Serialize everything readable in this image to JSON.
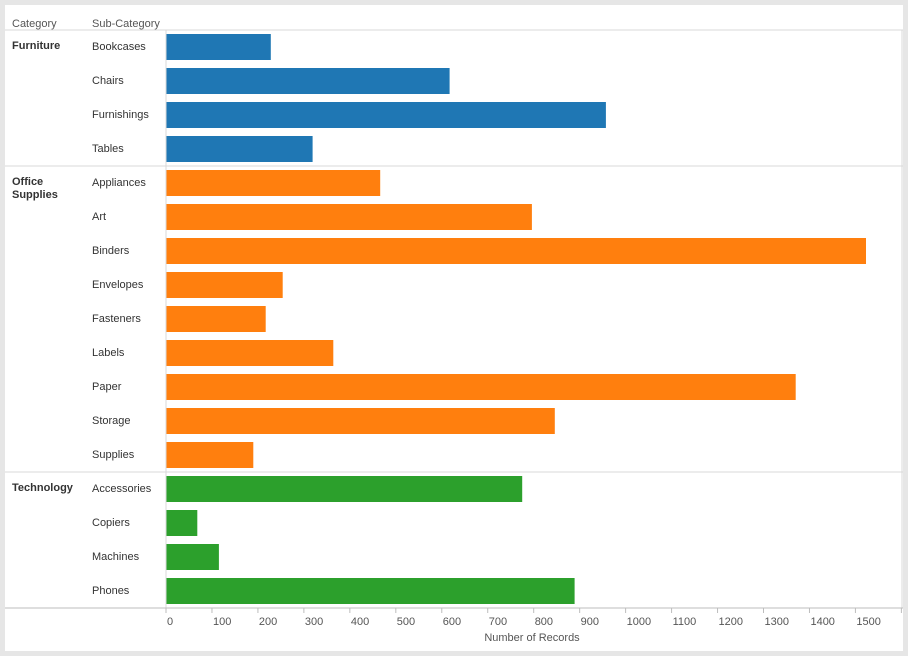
{
  "headers": {
    "category": "Category",
    "subcategory": "Sub-Category"
  },
  "chart_data": {
    "type": "bar",
    "orientation": "horizontal",
    "xlabel": "Number of Records",
    "xlim": [
      0,
      1600
    ],
    "xticks": [
      0,
      100,
      200,
      300,
      400,
      500,
      600,
      700,
      800,
      900,
      1000,
      1100,
      1200,
      1300,
      1400,
      1500,
      1600
    ],
    "grid": false,
    "groups": [
      {
        "category": "Furniture",
        "color": "#1f77b4",
        "subcategories": [
          "Bookcases",
          "Chairs",
          "Furnishings",
          "Tables"
        ],
        "values": [
          228,
          617,
          957,
          319
        ]
      },
      {
        "category": "Office Supplies",
        "color": "#ff7f0e",
        "subcategories": [
          "Appliances",
          "Art",
          "Binders",
          "Envelopes",
          "Fasteners",
          "Labels",
          "Paper",
          "Storage",
          "Supplies"
        ],
        "values": [
          466,
          796,
          1523,
          254,
          217,
          364,
          1370,
          846,
          190
        ]
      },
      {
        "category": "Technology",
        "color": "#2ca02c",
        "subcategories": [
          "Accessories",
          "Copiers",
          "Machines",
          "Phones"
        ],
        "values": [
          775,
          68,
          115,
          889
        ]
      }
    ]
  }
}
